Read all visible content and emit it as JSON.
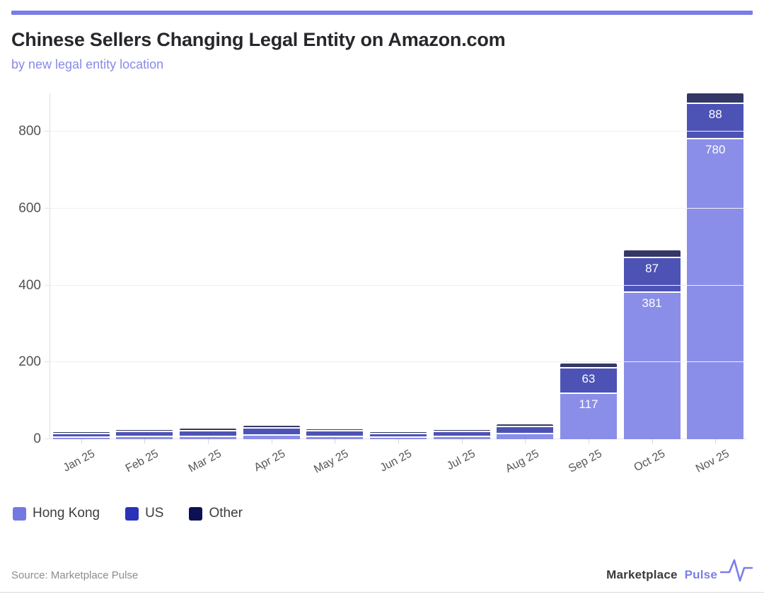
{
  "accent_color": "#797de8",
  "header": {
    "title": "Chinese Sellers Changing Legal Entity on Amazon.com",
    "subtitle": "by new legal entity location"
  },
  "chart_data": {
    "type": "bar",
    "stacked": true,
    "title": "Chinese Sellers Changing Legal Entity on Amazon.com",
    "subtitle": "by new legal entity location",
    "categories": [
      "Jan 25",
      "Feb 25",
      "Mar 25",
      "Apr 25",
      "May 25",
      "Jun 25",
      "Jul 25",
      "Aug 25",
      "Sep 25",
      "Oct 25",
      "Nov 25"
    ],
    "series": [
      {
        "name": "Hong Kong",
        "color": "#8a8ee8",
        "legend_color": "#7478e2",
        "values": [
          4,
          5,
          6,
          10,
          5,
          4,
          5,
          12,
          117,
          381,
          780
        ]
      },
      {
        "name": "US",
        "color": "#4d53b5",
        "legend_color": "#2a33b8",
        "values": [
          6,
          9,
          11,
          14,
          11,
          5,
          9,
          16,
          63,
          87,
          88
        ]
      },
      {
        "name": "Other",
        "color": "#333866",
        "legend_color": "#0d1153",
        "values": [
          1,
          2,
          3,
          4,
          2,
          1,
          2,
          3,
          9,
          16,
          24
        ]
      }
    ],
    "labeled_values": [
      "117",
      "63",
      "381",
      "87",
      "780",
      "88"
    ],
    "label_min_value": 60,
    "ylabel": "",
    "xlabel": "",
    "ylim": [
      0,
      900
    ],
    "yticks": [
      0,
      200,
      400,
      600,
      800
    ],
    "grid": true,
    "legend_position": "bottom-left",
    "xtick_rotation": -28
  },
  "footer": {
    "source": "Source: Marketplace Pulse",
    "logo": {
      "word1": "Marketplace",
      "word2": "Pulse",
      "icon": "pulse-heartbeat-icon"
    }
  }
}
